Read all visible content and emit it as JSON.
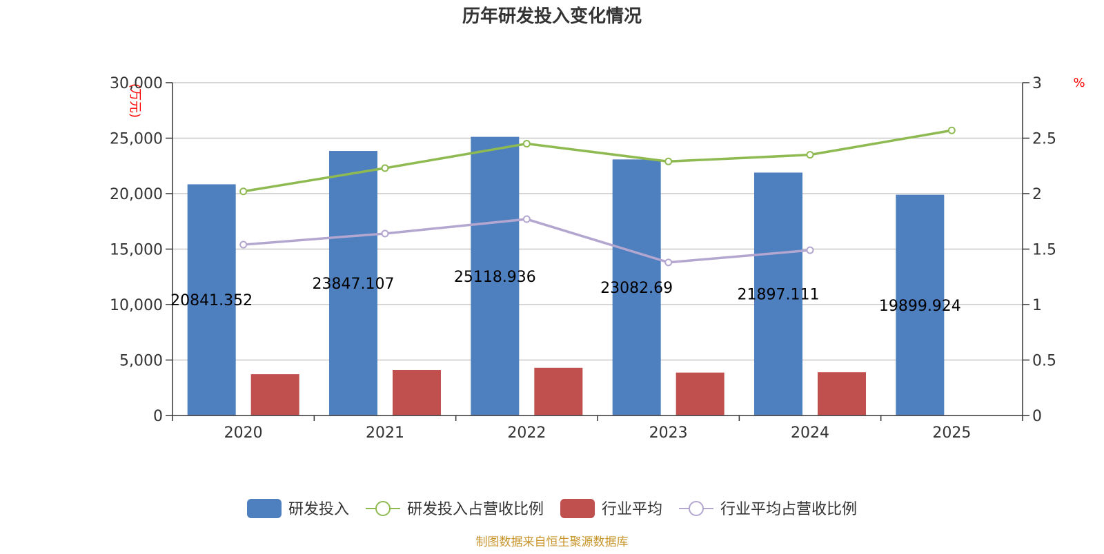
{
  "chart_data": {
    "type": "bar",
    "title": "历年研发投入变化情况",
    "categories": [
      "2020",
      "2021",
      "2022",
      "2023",
      "2024",
      "2025"
    ],
    "left_axis": {
      "unit": "(万元)",
      "ylim": [
        0,
        30000
      ],
      "ticks": [
        0,
        5000,
        10000,
        15000,
        20000,
        25000,
        30000
      ],
      "tick_labels": [
        "0",
        "5,000",
        "10,000",
        "15,000",
        "20,000",
        "25,000",
        "30,000"
      ]
    },
    "right_axis": {
      "unit": "%",
      "ylim": [
        0,
        3
      ],
      "ticks": [
        0,
        0.5,
        1,
        1.5,
        2,
        2.5,
        3
      ],
      "tick_labels": [
        "0",
        "0.5",
        "1",
        "1.5",
        "2",
        "2.5",
        "3"
      ]
    },
    "grid": true,
    "legend_position": "bottom",
    "series": [
      {
        "name": "研发投入",
        "type": "bar",
        "axis": "left",
        "color": "#4e7fbf",
        "values": [
          20841.352,
          23847.107,
          25118.936,
          23082.69,
          21897.111,
          19899.924
        ],
        "labels": [
          "20841.352",
          "23847.107",
          "25118.936",
          "23082.69",
          "21897.111",
          "19899.924"
        ]
      },
      {
        "name": "研发投入占营收比例",
        "type": "line",
        "axis": "right",
        "color": "#8fba52",
        "values": [
          2.02,
          2.23,
          2.45,
          2.29,
          2.35,
          2.57
        ]
      },
      {
        "name": "行业平均",
        "type": "bar",
        "axis": "left",
        "color": "#c0504d",
        "values": [
          3720,
          4100,
          4300,
          3870,
          3900,
          null
        ]
      },
      {
        "name": "行业平均占营收比例",
        "type": "line",
        "axis": "right",
        "color": "#b3a6cf",
        "values": [
          1.54,
          1.64,
          1.77,
          1.38,
          1.49,
          null
        ]
      }
    ]
  },
  "source_note": "制图数据来自恒生聚源数据库"
}
